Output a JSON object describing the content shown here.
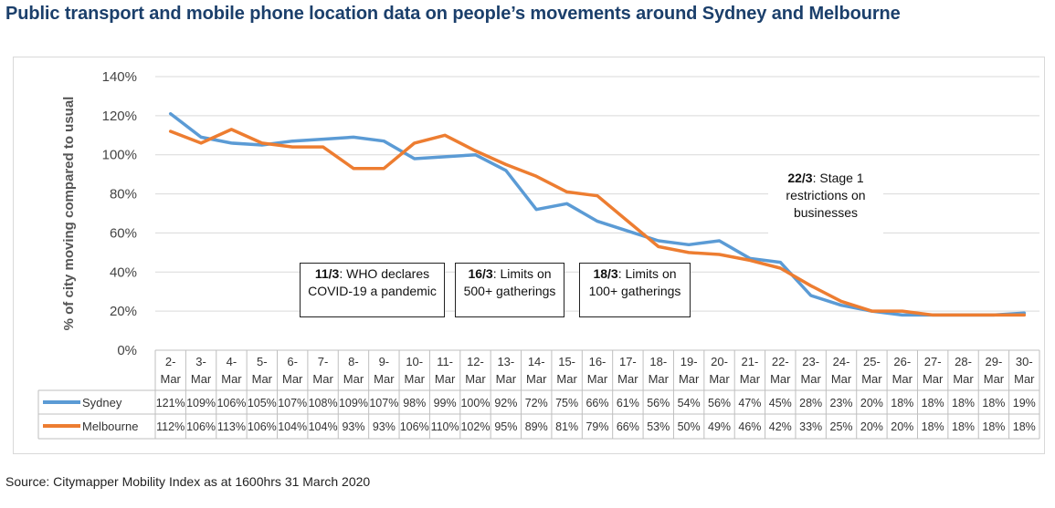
{
  "title": "Public transport and mobile phone location data on people’s movements around Sydney and Melbourne",
  "source": "Source: Citymapper Mobility Index as at 1600hrs 31 March 2020",
  "chart_data": {
    "type": "line",
    "title": "Public transport and mobile phone location data on people’s movements around Sydney and Melbourne",
    "xlabel": "",
    "ylabel": "% of city moving compared to usual",
    "ylim": [
      0,
      140
    ],
    "yticks": [
      "0%",
      "20%",
      "40%",
      "60%",
      "80%",
      "100%",
      "120%",
      "140%"
    ],
    "grid": true,
    "legend": "in data table",
    "categories": [
      [
        "2-",
        "Mar"
      ],
      [
        "3-",
        "Mar"
      ],
      [
        "4-",
        "Mar"
      ],
      [
        "5-",
        "Mar"
      ],
      [
        "6-",
        "Mar"
      ],
      [
        "7-",
        "Mar"
      ],
      [
        "8-",
        "Mar"
      ],
      [
        "9-",
        "Mar"
      ],
      [
        "10-",
        "Mar"
      ],
      [
        "11-",
        "Mar"
      ],
      [
        "12-",
        "Mar"
      ],
      [
        "13-",
        "Mar"
      ],
      [
        "14-",
        "Mar"
      ],
      [
        "15-",
        "Mar"
      ],
      [
        "16-",
        "Mar"
      ],
      [
        "17-",
        "Mar"
      ],
      [
        "18-",
        "Mar"
      ],
      [
        "19-",
        "Mar"
      ],
      [
        "20-",
        "Mar"
      ],
      [
        "21-",
        "Mar"
      ],
      [
        "22-",
        "Mar"
      ],
      [
        "23-",
        "Mar"
      ],
      [
        "24-",
        "Mar"
      ],
      [
        "25-",
        "Mar"
      ],
      [
        "26-",
        "Mar"
      ],
      [
        "27-",
        "Mar"
      ],
      [
        "28-",
        "Mar"
      ],
      [
        "29-",
        "Mar"
      ],
      [
        "30-",
        "Mar"
      ]
    ],
    "series": [
      {
        "name": "Sydney",
        "color": "#5b9bd5",
        "values": [
          121,
          109,
          106,
          105,
          107,
          108,
          109,
          107,
          98,
          99,
          100,
          92,
          72,
          75,
          66,
          61,
          56,
          54,
          56,
          47,
          45,
          28,
          23,
          20,
          18,
          18,
          18,
          18,
          19
        ],
        "labels": [
          "121%",
          "109%",
          "106%",
          "105%",
          "107%",
          "108%",
          "109%",
          "107%",
          "98%",
          "99%",
          "100%",
          "92%",
          "72%",
          "75%",
          "66%",
          "61%",
          "56%",
          "54%",
          "56%",
          "47%",
          "45%",
          "28%",
          "23%",
          "20%",
          "18%",
          "18%",
          "18%",
          "18%",
          "19%"
        ]
      },
      {
        "name": "Melbourne",
        "color": "#ed7d31",
        "values": [
          112,
          106,
          113,
          106,
          104,
          104,
          93,
          93,
          106,
          110,
          102,
          95,
          89,
          81,
          79,
          66,
          53,
          50,
          49,
          46,
          42,
          33,
          25,
          20,
          20,
          18,
          18,
          18,
          18
        ],
        "labels": [
          "112%",
          "106%",
          "113%",
          "106%",
          "104%",
          "104%",
          "93%",
          "93%",
          "106%",
          "110%",
          "102%",
          "95%",
          "89%",
          "81%",
          "79%",
          "66%",
          "53%",
          "50%",
          "49%",
          "46%",
          "42%",
          "33%",
          "25%",
          "20%",
          "20%",
          "18%",
          "18%",
          "18%",
          "18%"
        ]
      }
    ],
    "annotations": [
      {
        "bold": "11/3",
        "lines": [
          ": WHO declares",
          "COVID-19 a pandemic"
        ]
      },
      {
        "bold": "16/3",
        "lines": [
          ": Limits on",
          "500+ gatherings"
        ]
      },
      {
        "bold": "18/3",
        "lines": [
          ": Limits on",
          "100+ gatherings"
        ]
      },
      {
        "bold": "22/3",
        "lines": [
          ": Stage 1",
          "restrictions on",
          "businesses"
        ]
      }
    ]
  }
}
